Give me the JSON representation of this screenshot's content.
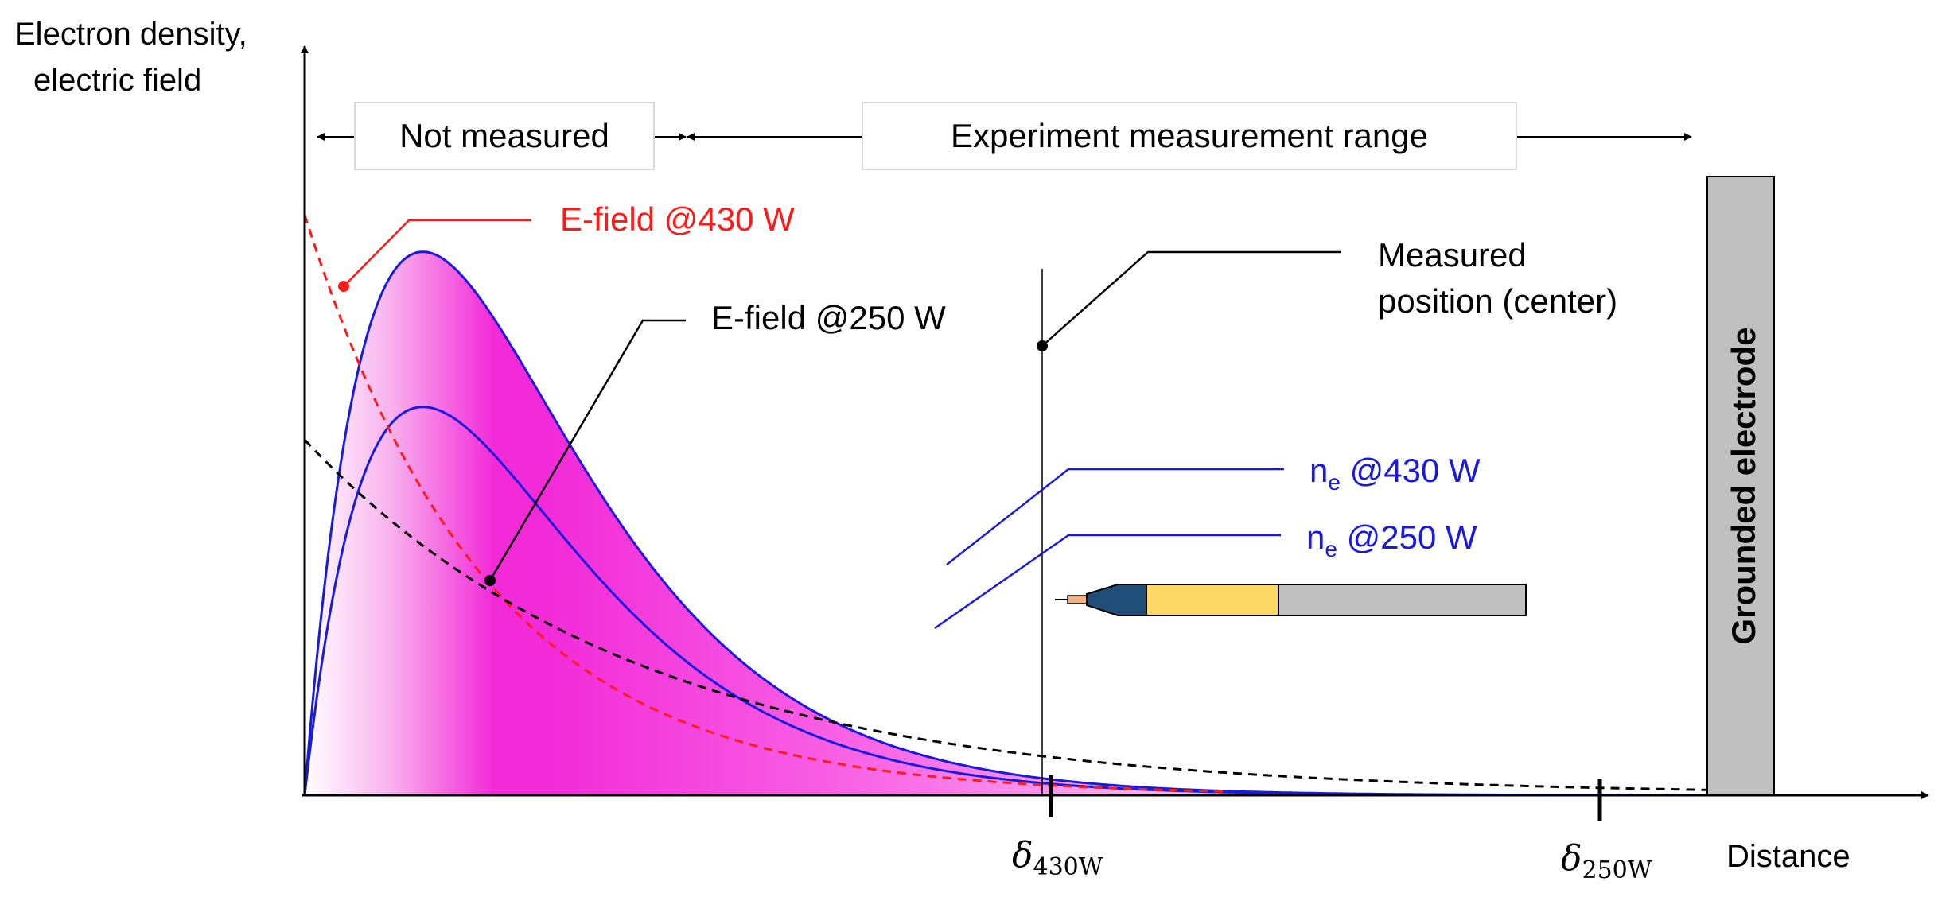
{
  "axes": {
    "y_label_line1": "Electron density,",
    "y_label_line2": "electric field",
    "x_label": "Distance"
  },
  "ranges": {
    "not_measured": "Not measured",
    "experiment": "Experiment measurement range"
  },
  "labels": {
    "efield_430": "E-field @430 W",
    "efield_250": "E-field @250 W",
    "measured_line1": "Measured",
    "measured_line2": "position (center)",
    "ne_430_main": "n",
    "ne_430_sub": "e",
    "ne_430_rest": " @430 W",
    "ne_250_main": "n",
    "ne_250_sub": "e",
    "ne_250_rest": " @250 W",
    "electrode": "Grounded electrode",
    "delta_symbol": "δ",
    "delta_430_sub": "430W",
    "delta_250_sub": "250W"
  },
  "colors": {
    "magenta": "#f22ad8",
    "curve_blue": "#1a1adb",
    "efield_red": "#ff1a1a",
    "efield_black": "#000000",
    "electrode_fill": "#c0c0c0",
    "probe_navy": "#1f4e79",
    "probe_yellow": "#ffd966",
    "probe_gray": "#bfbfbf",
    "probe_tip": "#f4b183"
  }
}
